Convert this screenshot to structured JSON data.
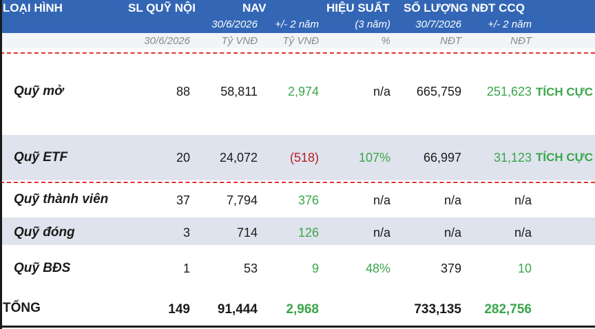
{
  "header": {
    "type_label": "LOẠI HÌNH",
    "domestic_funds": "SL QUỸ NỘI",
    "nav": "NAV",
    "performance": "HIỆU SUẤT",
    "ccq_investors": "SỐ LƯỢNG NĐT CCQ",
    "nav_date": "30/6/2026",
    "nav_change": "+/- 2 năm",
    "perf_period": "(3 năm)",
    "inv_date": "30/7/2026",
    "inv_change": "+/- 2 năm"
  },
  "units": {
    "domestic_date": "30/6/2026",
    "nav": "Tỷ VNĐ",
    "nav_change": "Tỷ VNĐ",
    "perf": "%",
    "investors": "NĐT",
    "inv_change": "NĐT"
  },
  "rows": [
    {
      "type": "Quỹ mở",
      "count": "88",
      "nav": "58,811",
      "nav_change": "2,974",
      "nav_change_color": "#3aa64a",
      "performance": "n/a",
      "performance_color": "#1a1a1a",
      "investors": "665,759",
      "inv_change": "251,623",
      "inv_change_color": "#3aa64a",
      "status": "TÍCH CỰC"
    },
    {
      "type": "Quỹ ETF",
      "count": "20",
      "nav": "24,072",
      "nav_change": "(518)",
      "nav_change_color": "#b32020",
      "performance": "107%",
      "performance_color": "#3aa64a",
      "investors": "66,997",
      "inv_change": "31,123",
      "inv_change_color": "#3aa64a",
      "status": "TÍCH CỰC"
    },
    {
      "type": "Quỹ thành viên",
      "count": "37",
      "nav": "7,794",
      "nav_change": "376",
      "nav_change_color": "#3aa64a",
      "performance": "n/a",
      "performance_color": "#1a1a1a",
      "investors": "n/a",
      "inv_change": "n/a",
      "inv_change_color": "#1a1a1a",
      "status": ""
    },
    {
      "type": "Quỹ đóng",
      "count": "3",
      "nav": "714",
      "nav_change": "126",
      "nav_change_color": "#3aa64a",
      "performance": "n/a",
      "performance_color": "#1a1a1a",
      "investors": "n/a",
      "inv_change": "n/a",
      "inv_change_color": "#1a1a1a",
      "status": ""
    },
    {
      "type": "Quỹ BĐS",
      "count": "1",
      "nav": "53",
      "nav_change": "9",
      "nav_change_color": "#3aa64a",
      "performance": "48%",
      "performance_color": "#3aa64a",
      "investors": "379",
      "inv_change": "10",
      "inv_change_color": "#3aa64a",
      "status": ""
    }
  ],
  "total": {
    "label": "TỔNG",
    "count": "149",
    "nav": "91,444",
    "nav_change": "2,968",
    "investors": "733,135",
    "inv_change": "282,756"
  },
  "colors": {
    "header_bg": "#3366b5",
    "positive": "#3aa64a",
    "negative": "#b32020",
    "band": "#dfe3ed",
    "divider": "#e03030"
  }
}
